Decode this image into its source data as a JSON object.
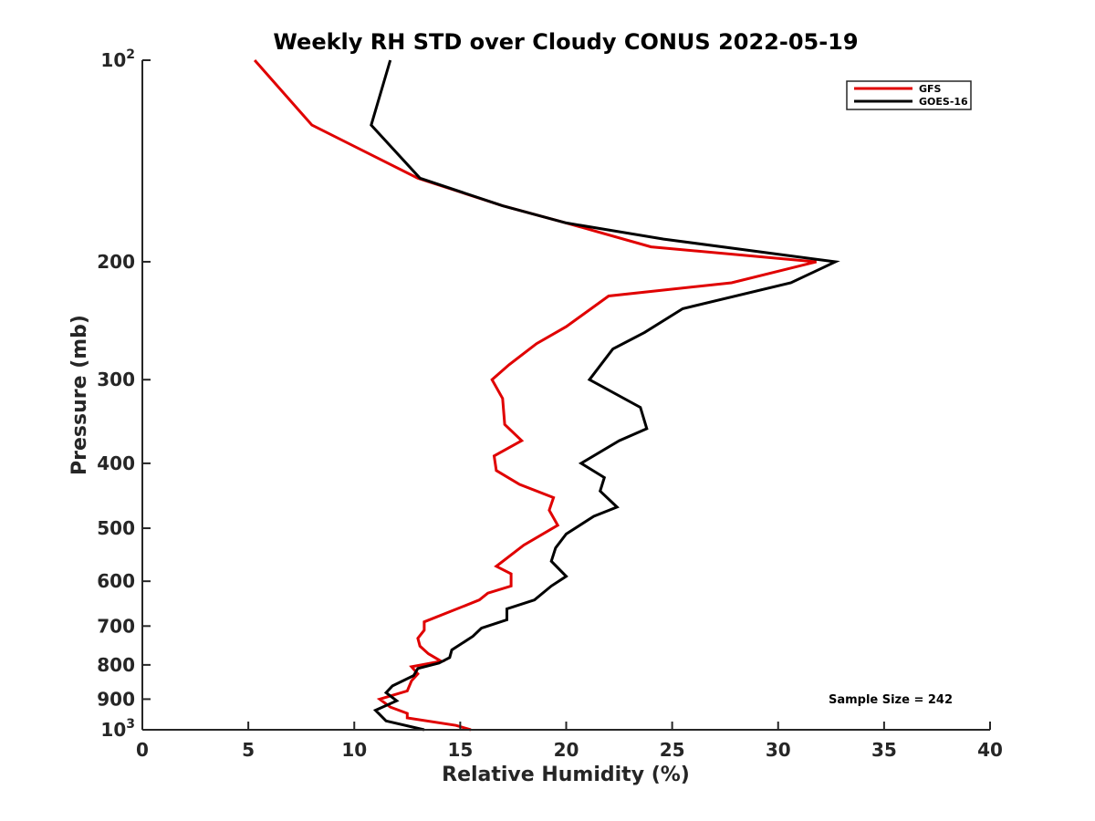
{
  "chart_data": {
    "type": "line",
    "title": "Weekly RH STD over Cloudy CONUS 2022-05-19",
    "xlabel": "Relative Humidity (%)",
    "ylabel": "Pressure (mb)",
    "xlim": [
      0,
      40
    ],
    "ylim": [
      100,
      1000
    ],
    "y_scale": "log",
    "y_reversed": true,
    "grid": false,
    "legend_position": "top-right",
    "x_ticks": [
      0,
      5,
      10,
      15,
      20,
      25,
      30,
      35,
      40
    ],
    "y_ticks": [
      {
        "value": 100,
        "base": "10",
        "exp": "2"
      },
      {
        "value": 200,
        "label": "200"
      },
      {
        "value": 300,
        "label": "300"
      },
      {
        "value": 400,
        "label": "400"
      },
      {
        "value": 500,
        "label": "500"
      },
      {
        "value": 600,
        "label": "600"
      },
      {
        "value": 700,
        "label": "700"
      },
      {
        "value": 800,
        "label": "800"
      },
      {
        "value": 900,
        "label": "900"
      },
      {
        "value": 1000,
        "base": "10",
        "exp": "3"
      }
    ],
    "annotation": "Sample Size = 242",
    "series": [
      {
        "name": "GFS",
        "color": "#e00000",
        "points": [
          [
            5.3,
            100
          ],
          [
            8.0,
            125
          ],
          [
            13.0,
            150
          ],
          [
            17.0,
            165
          ],
          [
            20.0,
            175
          ],
          [
            24.0,
            190
          ],
          [
            31.8,
            200
          ],
          [
            27.8,
            215
          ],
          [
            22.0,
            225
          ],
          [
            20.0,
            250
          ],
          [
            18.6,
            265
          ],
          [
            17.3,
            285
          ],
          [
            16.5,
            300
          ],
          [
            17.0,
            320
          ],
          [
            17.1,
            350
          ],
          [
            17.9,
            370
          ],
          [
            16.6,
            390
          ],
          [
            16.7,
            410
          ],
          [
            17.8,
            430
          ],
          [
            19.4,
            450
          ],
          [
            19.2,
            470
          ],
          [
            19.6,
            495
          ],
          [
            18.0,
            530
          ],
          [
            16.7,
            570
          ],
          [
            17.4,
            585
          ],
          [
            17.4,
            610
          ],
          [
            16.3,
            625
          ],
          [
            15.9,
            640
          ],
          [
            13.3,
            690
          ],
          [
            13.3,
            710
          ],
          [
            13.0,
            730
          ],
          [
            13.1,
            750
          ],
          [
            13.5,
            770
          ],
          [
            14.1,
            790
          ],
          [
            12.7,
            805
          ],
          [
            13.0,
            825
          ],
          [
            12.7,
            845
          ],
          [
            12.5,
            875
          ],
          [
            11.2,
            900
          ],
          [
            11.7,
            925
          ],
          [
            12.5,
            945
          ],
          [
            12.5,
            960
          ],
          [
            14.8,
            985
          ],
          [
            15.5,
            1000
          ]
        ]
      },
      {
        "name": "GOES-16",
        "color": "#000000",
        "points": [
          [
            11.7,
            100
          ],
          [
            10.8,
            125
          ],
          [
            13.1,
            150
          ],
          [
            17.0,
            165
          ],
          [
            20.0,
            175
          ],
          [
            24.6,
            185
          ],
          [
            32.7,
            200
          ],
          [
            30.6,
            215
          ],
          [
            25.5,
            235
          ],
          [
            23.7,
            255
          ],
          [
            22.2,
            270
          ],
          [
            21.1,
            300
          ],
          [
            23.5,
            330
          ],
          [
            23.8,
            355
          ],
          [
            22.5,
            370
          ],
          [
            20.7,
            400
          ],
          [
            21.8,
            420
          ],
          [
            21.6,
            440
          ],
          [
            22.4,
            465
          ],
          [
            21.3,
            480
          ],
          [
            20.0,
            510
          ],
          [
            19.5,
            535
          ],
          [
            19.3,
            560
          ],
          [
            20.0,
            590
          ],
          [
            19.3,
            610
          ],
          [
            18.5,
            640
          ],
          [
            17.2,
            660
          ],
          [
            17.2,
            685
          ],
          [
            16.0,
            705
          ],
          [
            15.6,
            725
          ],
          [
            14.6,
            760
          ],
          [
            14.5,
            780
          ],
          [
            14.0,
            795
          ],
          [
            13.0,
            810
          ],
          [
            12.8,
            830
          ],
          [
            11.8,
            860
          ],
          [
            11.5,
            880
          ],
          [
            12.0,
            905
          ],
          [
            11.0,
            935
          ],
          [
            11.5,
            970
          ],
          [
            13.3,
            1000
          ]
        ]
      }
    ]
  }
}
